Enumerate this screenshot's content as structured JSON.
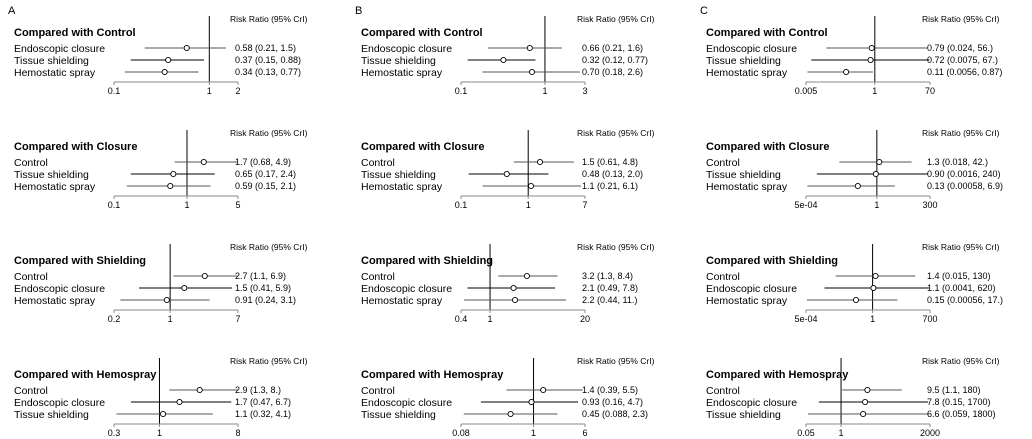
{
  "chart_data": {
    "type": "forest",
    "header": "Risk Ratio (95% CrI)",
    "panels": [
      {
        "letter": "A",
        "groups": [
          {
            "title": "Compared with Control",
            "axis": {
              "min": 0.1,
              "max": 2,
              "ticks": [
                "0.1",
                "1",
                "2"
              ],
              "scale": "log"
            },
            "rows": [
              {
                "label": "Endoscopic closure",
                "est": 0.58,
                "lo": 0.21,
                "hi": 1.5,
                "text": "0.58 (0.21, 1.5)"
              },
              {
                "label": "Tissue shielding",
                "est": 0.37,
                "lo": 0.15,
                "hi": 0.88,
                "text": "0.37 (0.15, 0.88)"
              },
              {
                "label": "Hemostatic spray",
                "est": 0.34,
                "lo": 0.13,
                "hi": 0.77,
                "text": "0.34 (0.13, 0.77)"
              }
            ]
          },
          {
            "title": "Compared with Closure",
            "axis": {
              "min": 0.1,
              "max": 5,
              "ticks": [
                "0.1",
                "1",
                "5"
              ],
              "scale": "log"
            },
            "rows": [
              {
                "label": "Control",
                "est": 1.7,
                "lo": 0.68,
                "hi": 4.9,
                "text": "1.7 (0.68, 4.9)"
              },
              {
                "label": "Tissue shielding",
                "est": 0.65,
                "lo": 0.17,
                "hi": 2.4,
                "text": "0.65 (0.17, 2.4)"
              },
              {
                "label": "Hemostatic spray",
                "est": 0.59,
                "lo": 0.15,
                "hi": 2.1,
                "text": "0.59 (0.15, 2.1)"
              }
            ]
          },
          {
            "title": "Compared with Shielding",
            "axis": {
              "min": 0.2,
              "max": 7,
              "ticks": [
                "0.2",
                "1",
                "7"
              ],
              "scale": "log"
            },
            "rows": [
              {
                "label": "Control",
                "est": 2.7,
                "lo": 1.1,
                "hi": 6.9,
                "text": "2.7 (1.1, 6.9)"
              },
              {
                "label": "Endoscopic closure",
                "est": 1.5,
                "lo": 0.41,
                "hi": 5.9,
                "text": "1.5 (0.41, 5.9)"
              },
              {
                "label": "Hemostatic spray",
                "est": 0.91,
                "lo": 0.24,
                "hi": 3.1,
                "text": "0.91 (0.24, 3.1)"
              }
            ]
          },
          {
            "title": "Compared with Hemospray",
            "axis": {
              "min": 0.3,
              "max": 8,
              "ticks": [
                "0.3",
                "1",
                "8"
              ],
              "scale": "log"
            },
            "rows": [
              {
                "label": "Control",
                "est": 2.9,
                "lo": 1.3,
                "hi": 8.0,
                "text": "2.9 (1.3, 8.)"
              },
              {
                "label": "Endoscopic closure",
                "est": 1.7,
                "lo": 0.47,
                "hi": 6.7,
                "text": "1.7 (0.47, 6.7)"
              },
              {
                "label": "Tissue shielding",
                "est": 1.1,
                "lo": 0.32,
                "hi": 4.1,
                "text": "1.1 (0.32, 4.1)"
              }
            ]
          }
        ]
      },
      {
        "letter": "B",
        "groups": [
          {
            "title": "Compared with Control",
            "axis": {
              "min": 0.1,
              "max": 3,
              "ticks": [
                "0.1",
                "1",
                "3"
              ],
              "scale": "log"
            },
            "rows": [
              {
                "label": "Endoscopic closure",
                "est": 0.66,
                "lo": 0.21,
                "hi": 1.6,
                "text": "0.66 (0.21, 1.6)"
              },
              {
                "label": "Tissue shielding",
                "est": 0.32,
                "lo": 0.12,
                "hi": 0.77,
                "text": "0.32 (0.12, 0.77)"
              },
              {
                "label": "Hemostatic spray",
                "est": 0.7,
                "lo": 0.18,
                "hi": 2.6,
                "text": "0.70 (0.18, 2.6)"
              }
            ]
          },
          {
            "title": "Compared with Closure",
            "axis": {
              "min": 0.1,
              "max": 7,
              "ticks": [
                "0.1",
                "1",
                "7"
              ],
              "scale": "log"
            },
            "rows": [
              {
                "label": "Control",
                "est": 1.5,
                "lo": 0.61,
                "hi": 4.8,
                "text": "1.5 (0.61, 4.8)"
              },
              {
                "label": "Tissue shielding",
                "est": 0.48,
                "lo": 0.13,
                "hi": 2.0,
                "text": "0.48 (0.13, 2.0)"
              },
              {
                "label": "Hemostatic spray",
                "est": 1.1,
                "lo": 0.21,
                "hi": 6.1,
                "text": "1.1 (0.21, 6.1)"
              }
            ]
          },
          {
            "title": "Compared with Shielding",
            "axis": {
              "min": 0.4,
              "max": 20,
              "ticks": [
                "0.4",
                "1",
                "20"
              ],
              "scale": "log"
            },
            "rows": [
              {
                "label": "Control",
                "est": 3.2,
                "lo": 1.3,
                "hi": 8.4,
                "text": "3.2 (1.3, 8.4)"
              },
              {
                "label": "Endoscopic closure",
                "est": 2.1,
                "lo": 0.49,
                "hi": 7.8,
                "text": "2.1 (0.49, 7.8)"
              },
              {
                "label": "Hemostatic spray",
                "est": 2.2,
                "lo": 0.44,
                "hi": 11,
                "text": "2.2 (0.44, 11.)"
              }
            ]
          },
          {
            "title": "Compared with Hemospray",
            "axis": {
              "min": 0.08,
              "max": 6,
              "ticks": [
                "0.08",
                "1",
                "6"
              ],
              "scale": "log"
            },
            "rows": [
              {
                "label": "Control",
                "est": 1.4,
                "lo": 0.39,
                "hi": 5.5,
                "text": "1.4 (0.39, 5.5)"
              },
              {
                "label": "Endoscopic closure",
                "est": 0.93,
                "lo": 0.16,
                "hi": 4.7,
                "text": "0.93 (0.16, 4.7)"
              },
              {
                "label": "Tissue shielding",
                "est": 0.45,
                "lo": 0.088,
                "hi": 2.3,
                "text": "0.45 (0.088, 2.3)"
              }
            ]
          }
        ]
      },
      {
        "letter": "C",
        "groups": [
          {
            "title": "Compared with Control",
            "axis": {
              "min": 0.005,
              "max": 70,
              "ticks": [
                "0.005",
                "1",
                "70"
              ],
              "scale": "log"
            },
            "rows": [
              {
                "label": "Endoscopic closure",
                "est": 0.79,
                "lo": 0.024,
                "hi": 56,
                "text": "0.79 (0.024,   56.)"
              },
              {
                "label": "Tissue shielding",
                "est": 0.72,
                "lo": 0.0075,
                "hi": 67,
                "text": "0.72 (0.0075, 67.)"
              },
              {
                "label": "Hemostatic spray",
                "est": 0.11,
                "lo": 0.0056,
                "hi": 0.87,
                "text": "0.11 (0.0056, 0.87)"
              }
            ]
          },
          {
            "title": "Compared with Closure",
            "axis": {
              "min": 0.0005,
              "max": 300,
              "ticks": [
                "5e-04",
                "1",
                "300"
              ],
              "scale": "log"
            },
            "rows": [
              {
                "label": "Control",
                "est": 1.3,
                "lo": 0.018,
                "hi": 42,
                "text": "1.3 (0.018, 42.)"
              },
              {
                "label": "Tissue shielding",
                "est": 0.9,
                "lo": 0.0016,
                "hi": 240,
                "text": "0.90 (0.0016, 240)"
              },
              {
                "label": "Hemostatic spray",
                "est": 0.13,
                "lo": 0.00058,
                "hi": 6.9,
                "text": "0.13 (0.00058, 6.9)"
              }
            ]
          },
          {
            "title": "Compared with Shielding",
            "axis": {
              "min": 0.0005,
              "max": 700,
              "ticks": [
                "5e-04",
                "1",
                "700"
              ],
              "scale": "log"
            },
            "rows": [
              {
                "label": "Control",
                "est": 1.4,
                "lo": 0.015,
                "hi": 130,
                "text": "1.4 (0.015, 130)"
              },
              {
                "label": "Endoscopic closure",
                "est": 1.1,
                "lo": 0.0041,
                "hi": 620,
                "text": "1.1 (0.0041, 620)"
              },
              {
                "label": "Hemostatic spray",
                "est": 0.15,
                "lo": 0.00056,
                "hi": 17,
                "text": "0.15 (0.00056, 17.)"
              }
            ]
          },
          {
            "title": "Compared with Hemospray",
            "axis": {
              "min": 0.05,
              "max": 2000,
              "ticks": [
                "0.05",
                "1",
                "2000"
              ],
              "scale": "log"
            },
            "rows": [
              {
                "label": "Control",
                "est": 9.5,
                "lo": 1.1,
                "hi": 180,
                "text": "9.5 (1.1, 180)"
              },
              {
                "label": "Endoscopic closure",
                "est": 7.8,
                "lo": 0.15,
                "hi": 1700,
                "text": "7.8 (0.15, 1700)"
              },
              {
                "label": "Tissue shielding",
                "est": 6.6,
                "lo": 0.059,
                "hi": 1800,
                "text": "6.6 (0.059, 1800)"
              }
            ]
          }
        ]
      }
    ]
  }
}
